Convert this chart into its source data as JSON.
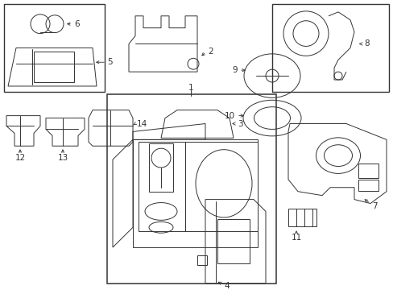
{
  "bg_color": "#ffffff",
  "line_color": "#333333",
  "lw": 0.7,
  "fig_w": 4.89,
  "fig_h": 3.6,
  "dpi": 100
}
